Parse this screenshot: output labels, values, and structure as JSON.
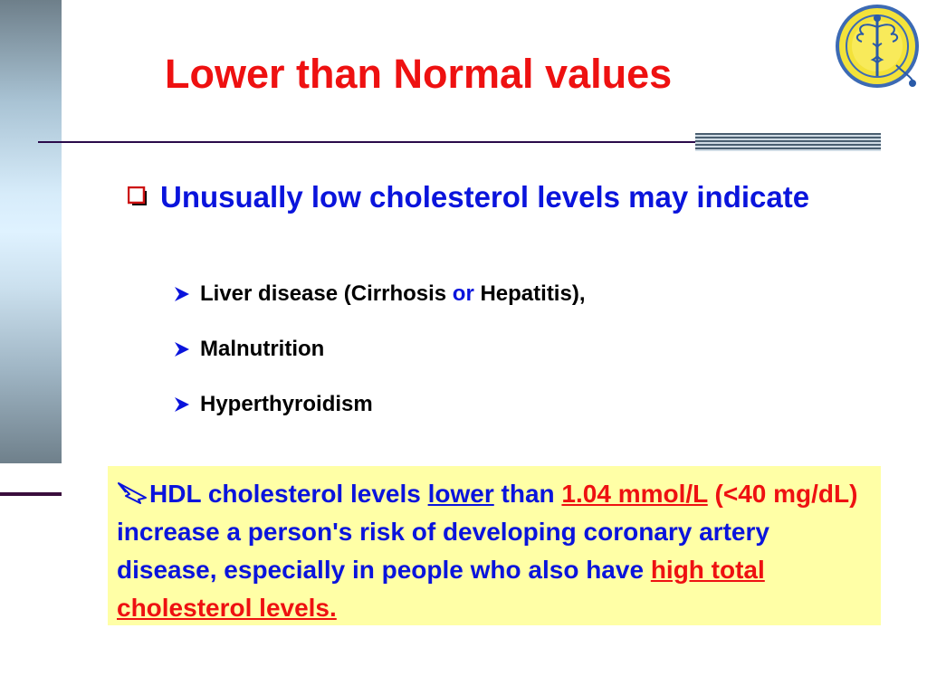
{
  "slide": {
    "title": "Lower than Normal values",
    "main_bullet": "Unusually low cholesterol levels may indicate",
    "sub_bullets": {
      "item1_pre": "Liver disease (Cirrhosis ",
      "item1_or": "or",
      "item1_post": " Hepatitis),",
      "item2": "Malnutrition",
      "item3": "Hyperthyroidism"
    },
    "highlight": {
      "t1": "HDL cholesterol levels ",
      "t2": "lower",
      "t3": " than ",
      "t4": "1.04 mmol/L",
      "t5": "(<40 mg/dL)",
      "t6": " increase a person's risk of developing coronary artery disease, especially in people who also have ",
      "t7": "high total cholesterol levels."
    }
  },
  "colors": {
    "title": "#ee1111",
    "main_text": "#0a14dc",
    "highlight_bg": "#ffffa6"
  },
  "icons": [
    "checkbox-bullet-icon",
    "arrowhead-bullet-icon",
    "pencil-pointer-icon",
    "medical-caduceus-logo"
  ]
}
